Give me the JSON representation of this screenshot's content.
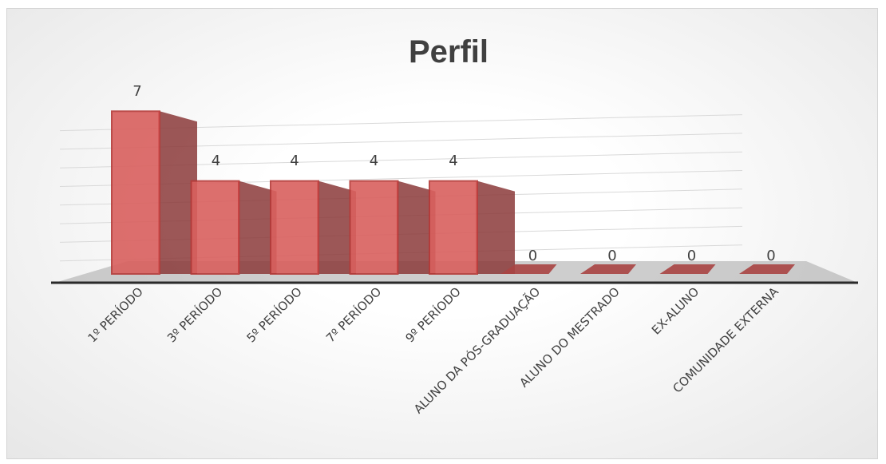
{
  "chart_data": {
    "type": "bar",
    "title": "Perfil",
    "categories": [
      "1º PERÍODO",
      "3º PERÍODO",
      "5º PERÍODO",
      "7º PERÍODO",
      "9º PERÍODO",
      "ALUNO DA PÓS-GRADUAÇÃO",
      "ALUNO DO MESTRADO",
      "EX-ALUNO",
      "COMUNIDADE EXTERNA"
    ],
    "values": [
      7,
      4,
      4,
      4,
      4,
      0,
      0,
      0,
      0
    ],
    "ylim": [
      0,
      8
    ],
    "grid": true,
    "legend": "none",
    "style": "3d-column",
    "colors": {
      "bar_front": "#d9605e",
      "bar_side": "#8b3a3a",
      "bar_top": "#a94442",
      "floor": "#a6a6a6",
      "grid": "#d9d9d9",
      "text": "#404040"
    }
  }
}
